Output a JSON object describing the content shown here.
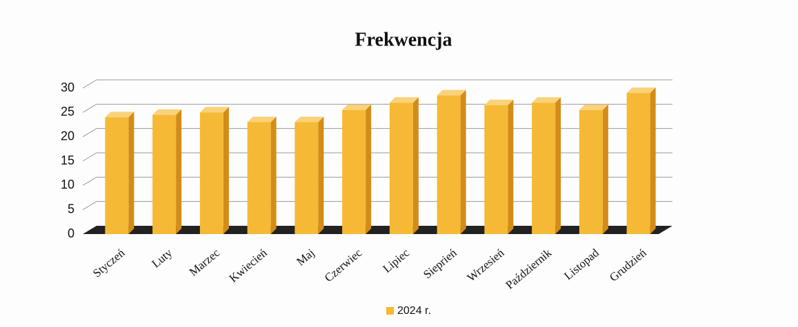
{
  "chart_data": {
    "type": "bar3d",
    "title": "Frekwencja",
    "categories": [
      "Styczeń",
      "Luty",
      "Marzec",
      "Kwiecień",
      "Maj",
      "Czerwiec",
      "Lipiec",
      "Sieprień",
      "Wrzesień",
      "Październik",
      "Listopad",
      "Grudzień"
    ],
    "series": [
      {
        "name": "2024 r.",
        "color": "#f5b935",
        "values": [
          24,
          24.5,
          25,
          23,
          23,
          25.5,
          27,
          28.5,
          26.5,
          27,
          25.5,
          29
        ]
      }
    ],
    "ylim": [
      0,
      30
    ],
    "yticks": [
      0,
      5,
      10,
      15,
      20,
      25,
      30
    ],
    "grid": true
  }
}
